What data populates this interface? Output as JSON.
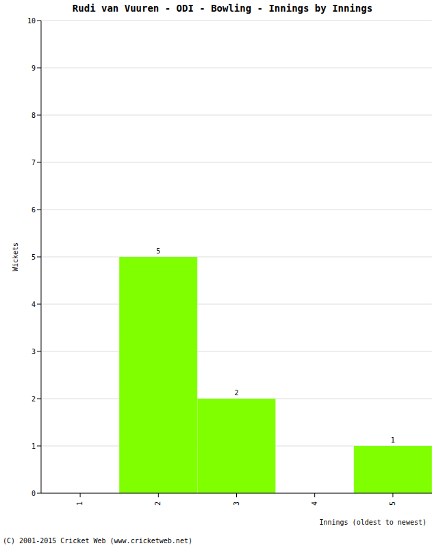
{
  "chart_data": {
    "type": "bar",
    "title": "Rudi van Vuuren - ODI - Bowling - Innings by Innings",
    "x_label": "Innings (oldest to newest)",
    "y_label": "Wickets",
    "categories": [
      "1",
      "2",
      "3",
      "4",
      "5"
    ],
    "values": [
      0,
      5,
      2,
      0,
      1
    ],
    "color": "#80ff00",
    "ylim": [
      0,
      10
    ],
    "yticks": [
      0,
      1,
      2,
      3,
      4,
      5,
      6,
      7,
      8,
      9,
      10
    ],
    "grid": true,
    "data_labels": true,
    "footer": "(C) 2001-2015 Cricket Web (www.cricketweb.net)"
  }
}
